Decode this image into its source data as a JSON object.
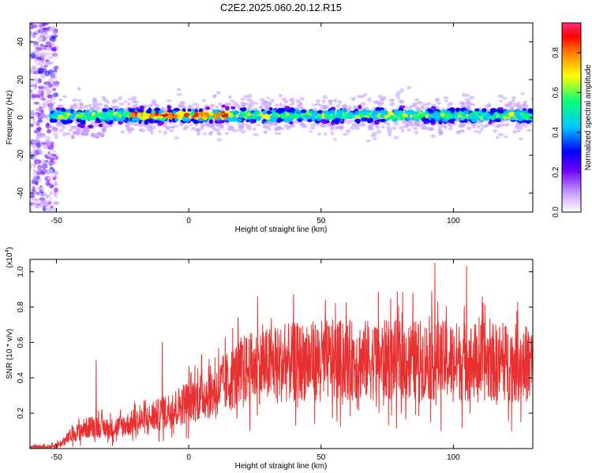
{
  "title": "C2E2.2025.060.20.12.R15",
  "colors": {
    "signal_line": "#e83030",
    "background": "#ffffff",
    "axis": "#000000"
  },
  "chart_data": [
    {
      "type": "heatmap",
      "name": "spectrogram",
      "xlabel": "Height of straight line (km)",
      "ylabel": "Frequency (Hz)",
      "xlim": [
        -60,
        130
      ],
      "ylim": [
        -50,
        50
      ],
      "xticks": [
        -50,
        0,
        50,
        100
      ],
      "yticks": [
        -40,
        -20,
        0,
        20,
        40
      ],
      "ridge_center_hz": 1,
      "ridge_halfwidth_hz": 6,
      "broadband_region_km": [
        -60,
        -50
      ],
      "colorbar": {
        "label": "Normalized spectral amplitude",
        "ticks": [
          0.0,
          0.2,
          0.4,
          0.6,
          0.8
        ],
        "range": [
          0,
          0.95
        ],
        "colormap": [
          "#ffffff",
          "#c8a0ff",
          "#7000ff",
          "#0000ff",
          "#00c8ff",
          "#00ff80",
          "#ffff00",
          "#ff8000",
          "#ff0000",
          "#ff3080"
        ]
      }
    },
    {
      "type": "line",
      "name": "snr",
      "xlabel": "Height of straight line (km)",
      "ylabel": "SNR (10 * v/v)",
      "scale_label": "(x10",
      "scale_exponent": "4",
      "scale_suffix": ")",
      "xlim": [
        -60,
        130
      ],
      "ylim": [
        0,
        1.07
      ],
      "xticks": [
        -50,
        0,
        50,
        100
      ],
      "yticks": [
        0.2,
        0.4,
        0.6,
        0.8,
        1.0
      ],
      "trend": [
        {
          "x": -60,
          "y": 0.005
        },
        {
          "x": -52,
          "y": 0.01
        },
        {
          "x": -48,
          "y": 0.03
        },
        {
          "x": -44,
          "y": 0.08
        },
        {
          "x": -40,
          "y": 0.11
        },
        {
          "x": -35,
          "y": 0.13
        },
        {
          "x": -30,
          "y": 0.11
        },
        {
          "x": -25,
          "y": 0.13
        },
        {
          "x": -20,
          "y": 0.15
        },
        {
          "x": -15,
          "y": 0.17
        },
        {
          "x": -10,
          "y": 0.2
        },
        {
          "x": -5,
          "y": 0.23
        },
        {
          "x": 0,
          "y": 0.27
        },
        {
          "x": 5,
          "y": 0.3
        },
        {
          "x": 10,
          "y": 0.33
        },
        {
          "x": 15,
          "y": 0.38
        },
        {
          "x": 20,
          "y": 0.44
        },
        {
          "x": 30,
          "y": 0.47
        },
        {
          "x": 40,
          "y": 0.49
        },
        {
          "x": 50,
          "y": 0.5
        },
        {
          "x": 70,
          "y": 0.5
        },
        {
          "x": 90,
          "y": 0.5
        },
        {
          "x": 110,
          "y": 0.49
        },
        {
          "x": 130,
          "y": 0.48
        }
      ],
      "peaks": [
        {
          "x": -35,
          "y": 0.5
        },
        {
          "x": -10,
          "y": 0.6
        },
        {
          "x": 26,
          "y": 0.86
        },
        {
          "x": 93,
          "y": 1.05
        },
        {
          "x": 105,
          "y": 1.03
        }
      ]
    }
  ]
}
